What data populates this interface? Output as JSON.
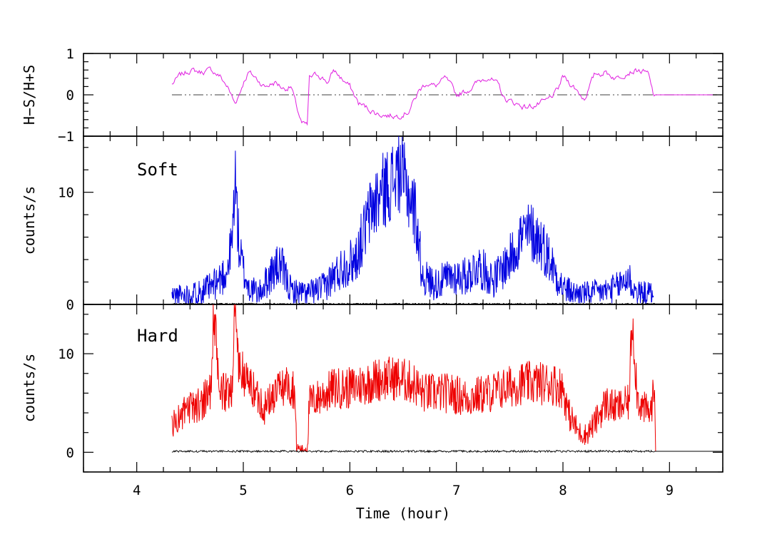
{
  "chart_data": {
    "type": "line",
    "xlabel": "Time (hour)",
    "xlim": [
      3.5,
      9.5
    ],
    "xticks": [
      4,
      5,
      6,
      7,
      8,
      9
    ],
    "panels": [
      {
        "id": "ratio",
        "ylabel": "H−S/H+S",
        "ylim": [
          -1,
          1
        ],
        "yticks": [
          1,
          0,
          -1
        ],
        "ytick_labels": [
          "1",
          "0",
          "−1"
        ],
        "reference_line": {
          "y": 0,
          "style": "dash-dot",
          "color": "#666666"
        },
        "series": [
          {
            "name": "hardness ratio",
            "color": "#e020e0",
            "x": [
              4.33,
              4.4,
              4.5,
              4.6,
              4.7,
              4.78,
              4.85,
              4.92,
              4.96,
              5.0,
              5.05,
              5.12,
              5.2,
              5.3,
              5.38,
              5.45,
              5.5,
              5.55,
              5.6,
              5.62,
              5.7,
              5.8,
              5.85,
              5.92,
              6.0,
              6.08,
              6.15,
              6.25,
              6.35,
              6.45,
              6.55,
              6.65,
              6.72,
              6.8,
              6.9,
              7.0,
              7.1,
              7.2,
              7.3,
              7.4,
              7.45,
              7.55,
              7.65,
              7.75,
              7.85,
              7.95,
              8.0,
              8.1,
              8.2,
              8.3,
              8.4,
              8.5,
              8.6,
              8.7,
              8.8,
              8.85,
              9.0,
              9.2,
              9.45
            ],
            "y": [
              0.25,
              0.45,
              0.6,
              0.55,
              0.6,
              0.45,
              0.2,
              -0.2,
              0.0,
              0.3,
              0.55,
              0.4,
              0.2,
              0.3,
              0.15,
              0.2,
              -0.3,
              -0.7,
              -0.75,
              0.4,
              0.5,
              0.3,
              0.6,
              0.4,
              0.2,
              -0.2,
              -0.3,
              -0.45,
              -0.5,
              -0.5,
              -0.4,
              0.1,
              0.3,
              0.2,
              0.4,
              0.0,
              0.1,
              0.3,
              0.45,
              0.2,
              -0.1,
              -0.2,
              -0.3,
              -0.25,
              -0.15,
              0.1,
              0.45,
              0.2,
              -0.1,
              0.5,
              0.55,
              0.4,
              0.55,
              0.6,
              0.5,
              0.0,
              0.0,
              0.0,
              0.0
            ]
          }
        ]
      },
      {
        "id": "soft",
        "label": "Soft",
        "ylabel": "counts/s",
        "ylim": [
          0,
          15
        ],
        "yticks": [
          0,
          10
        ],
        "ytick_labels": [
          "0",
          "10"
        ],
        "series": [
          {
            "name": "Soft",
            "color": "#0000e0",
            "x": [
              4.33,
              4.5,
              4.7,
              4.85,
              4.9,
              4.92,
              4.96,
              5.0,
              5.05,
              5.15,
              5.28,
              5.35,
              5.45,
              5.6,
              5.75,
              5.85,
              5.95,
              6.05,
              6.12,
              6.2,
              6.3,
              6.4,
              6.46,
              6.55,
              6.62,
              6.68,
              6.8,
              6.95,
              7.1,
              7.2,
              7.35,
              7.5,
              7.6,
              7.7,
              7.8,
              7.9,
              8.0,
              8.1,
              8.25,
              8.4,
              8.5,
              8.62,
              8.65,
              8.7,
              8.85
            ],
            "y": [
              0.8,
              0.9,
              1.5,
              3.0,
              6.0,
              12.0,
              5.0,
              3.0,
              1.5,
              1.0,
              3.0,
              3.5,
              1.2,
              1.0,
              1.5,
              2.5,
              3.5,
              4.0,
              6.0,
              8.5,
              10.0,
              11.0,
              12.0,
              10.0,
              8.0,
              2.5,
              1.8,
              2.5,
              2.5,
              3.5,
              2.2,
              4.0,
              6.0,
              6.5,
              5.5,
              3.5,
              1.5,
              1.0,
              1.0,
              1.2,
              1.5,
              2.5,
              1.5,
              1.0,
              1.0
            ]
          },
          {
            "name": "Soft background",
            "color": "#000000",
            "x": [
              4.33,
              9.5
            ],
            "y": [
              0.05,
              0.05
            ]
          }
        ]
      },
      {
        "id": "hard",
        "label": "Hard",
        "ylabel": "counts/s",
        "ylim": [
          -2,
          15
        ],
        "yticks": [
          0,
          10
        ],
        "ytick_labels": [
          "0",
          "10"
        ],
        "series": [
          {
            "name": "Hard",
            "color": "#ee0000",
            "x": [
              4.33,
              4.45,
              4.6,
              4.7,
              4.72,
              4.78,
              4.85,
              4.9,
              4.92,
              4.96,
              5.05,
              5.15,
              5.2,
              5.3,
              5.4,
              5.48,
              5.5,
              5.55,
              5.6,
              5.62,
              5.7,
              5.85,
              6.0,
              6.15,
              6.3,
              6.45,
              6.6,
              6.68,
              6.8,
              6.95,
              7.1,
              7.3,
              7.45,
              7.6,
              7.75,
              7.9,
              8.0,
              8.05,
              8.15,
              8.22,
              8.3,
              8.4,
              8.5,
              8.62,
              8.65,
              8.7,
              8.75,
              8.82,
              8.86
            ],
            "y": [
              2.8,
              4.0,
              5.0,
              6.5,
              14.0,
              6.0,
              6.0,
              7.0,
              15.0,
              8.5,
              7.0,
              5.5,
              4.5,
              6.0,
              7.0,
              6.5,
              0.5,
              0.3,
              0.4,
              5.0,
              5.5,
              6.5,
              6.5,
              7.0,
              7.5,
              7.5,
              7.0,
              6.0,
              6.0,
              6.0,
              5.5,
              6.0,
              6.5,
              7.0,
              7.0,
              7.0,
              6.5,
              4.0,
              2.0,
              1.8,
              3.0,
              5.0,
              4.5,
              5.0,
              14.0,
              5.5,
              4.5,
              4.0,
              6.5
            ]
          },
          {
            "name": "Hard background",
            "color": "#000000",
            "x": [
              4.33,
              9.5
            ],
            "y": [
              0.1,
              0.1
            ]
          }
        ]
      }
    ]
  }
}
